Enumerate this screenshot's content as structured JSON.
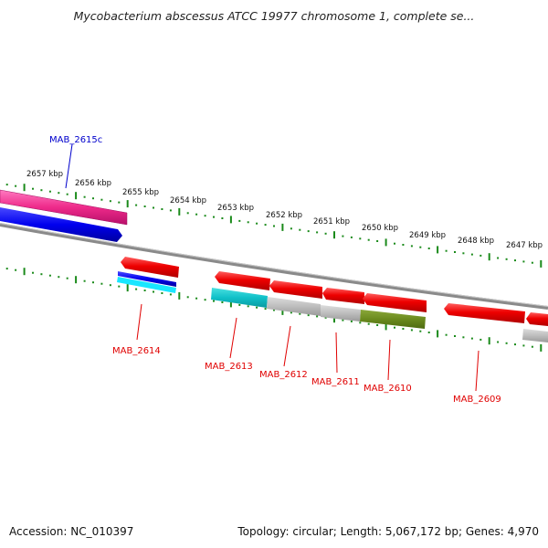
{
  "title": "Mycobacterium abscessus ATCC 19977 chromosome 1, complete se...",
  "footer": {
    "accession": "Accession: NC_010397",
    "summary": "Topology: circular; Length: 5,067,172 bp; Genes: 4,970"
  },
  "scale": {
    "unit": "kbp",
    "ticks": [
      "2657 kbp",
      "2656 kbp",
      "2655 kbp",
      "2654 kbp",
      "2653 kbp",
      "2652 kbp",
      "2651 kbp",
      "2650 kbp",
      "2649 kbp",
      "2648 kbp",
      "2647 kbp"
    ],
    "color": "#1a8a1a"
  },
  "colors": {
    "gene_label": "#e00000",
    "upper_label": "#0000cc",
    "backbone": "#888888"
  },
  "genes": [
    {
      "name": "MAB_2615c",
      "strand": "upper"
    },
    {
      "name": "MAB_2614",
      "strand": "lower"
    },
    {
      "name": "MAB_2613",
      "strand": "lower"
    },
    {
      "name": "MAB_2612",
      "strand": "lower"
    },
    {
      "name": "MAB_2611",
      "strand": "lower"
    },
    {
      "name": "MAB_2610",
      "strand": "lower"
    },
    {
      "name": "MAB_2609",
      "strand": "lower"
    }
  ]
}
